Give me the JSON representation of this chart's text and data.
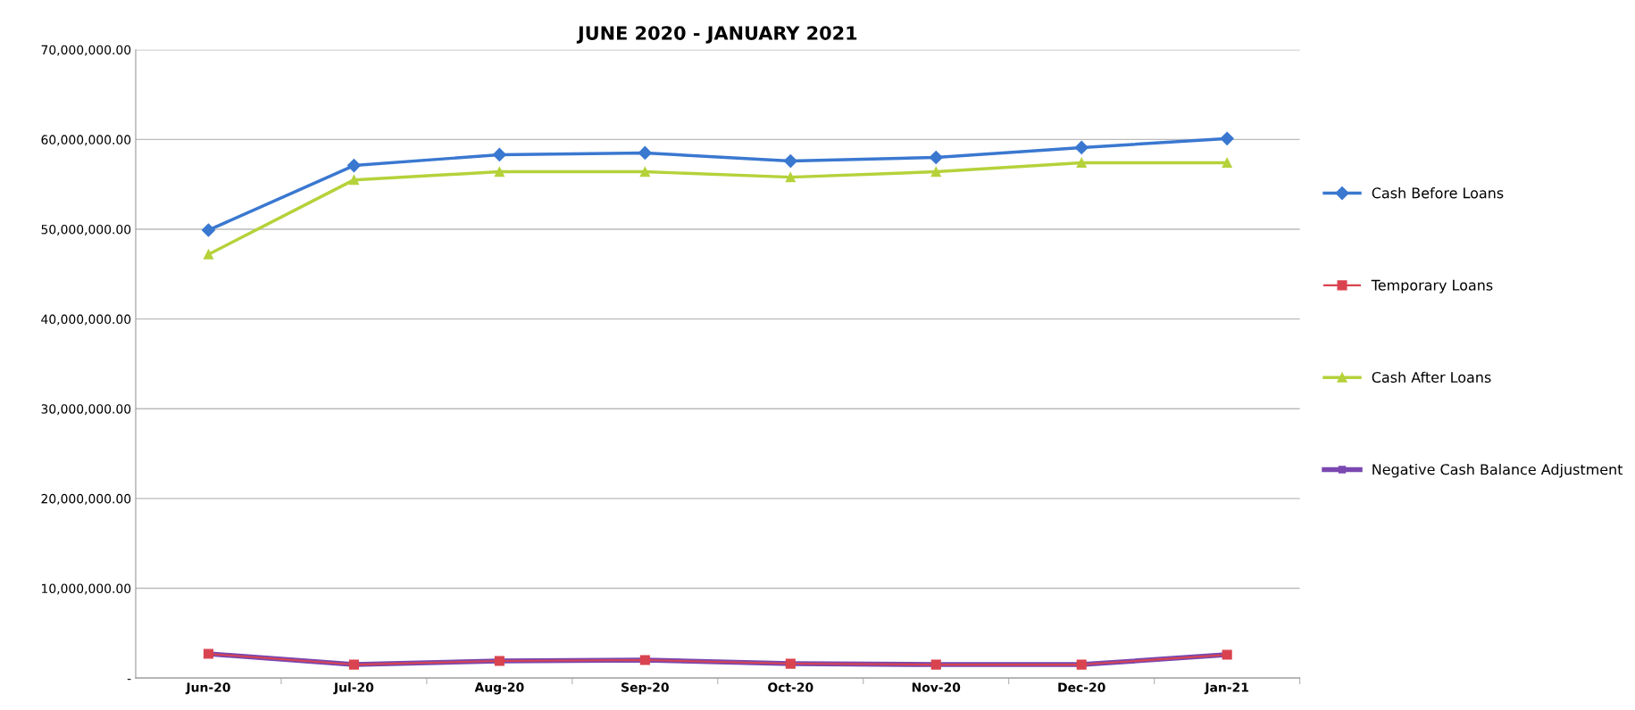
{
  "chart_data": {
    "type": "line",
    "title": "JUNE 2020 - JANUARY 2021",
    "categories": [
      "Jun-20",
      "Jul-20",
      "Aug-20",
      "Sep-20",
      "Oct-20",
      "Nov-20",
      "Dec-20",
      "Jan-21"
    ],
    "series": [
      {
        "name": "Cash Before Loans",
        "color": "#3a78d0",
        "marker": "diamond",
        "values": [
          49900000,
          57100000,
          58300000,
          58500000,
          57600000,
          58000000,
          59100000,
          60100000
        ]
      },
      {
        "name": "Temporary Loans",
        "color": "#d9434f",
        "marker": "square",
        "values": [
          2700000,
          1500000,
          1900000,
          2000000,
          1600000,
          1500000,
          1500000,
          2600000
        ]
      },
      {
        "name": "Cash After Loans",
        "color": "#b5d23a",
        "marker": "triangle",
        "values": [
          47200000,
          55500000,
          56400000,
          56400000,
          55800000,
          56400000,
          57400000,
          57400000
        ]
      },
      {
        "name": "Negative Cash Balance Adjustment",
        "color": "#7a48b0",
        "marker": "square",
        "values": [
          2700000,
          1500000,
          1900000,
          2000000,
          1600000,
          1500000,
          1500000,
          2600000
        ]
      }
    ],
    "ylim": [
      0,
      70000000
    ],
    "yticks": [
      {
        "value": 0,
        "label": "-"
      },
      {
        "value": 10000000,
        "label": "10,000,000.00"
      },
      {
        "value": 20000000,
        "label": "20,000,000.00"
      },
      {
        "value": 30000000,
        "label": "30,000,000.00"
      },
      {
        "value": 40000000,
        "label": "40,000,000.00"
      },
      {
        "value": 50000000,
        "label": "50,000,000.00"
      },
      {
        "value": 60000000,
        "label": "60,000,000.00"
      },
      {
        "value": 70000000,
        "label": "70,000,000.00"
      }
    ],
    "grid": "y",
    "legend": "right",
    "line_style": "solid"
  }
}
